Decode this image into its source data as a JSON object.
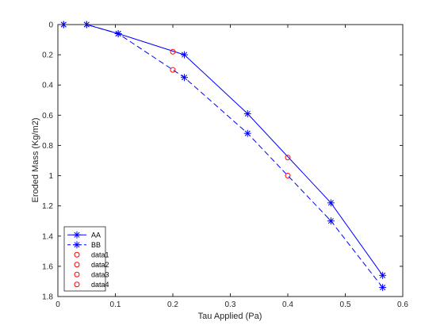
{
  "chart_data": {
    "type": "line",
    "title": "",
    "xlabel": "Tau Applied  (Pa)",
    "ylabel": "Eroded Mass  (Kg/m2)",
    "xlim": [
      0,
      0.6
    ],
    "ylim": [
      0,
      1.8
    ],
    "y_direction": "reversed",
    "xticks": [
      "0",
      "0.1",
      "0.2",
      "0.3",
      "0.4",
      "0.5",
      "0.6"
    ],
    "yticks": [
      "0",
      "0.2",
      "0.4",
      "0.6",
      "0.8",
      "1",
      "1.2",
      "1.4",
      "1.6",
      "1.8"
    ],
    "grid": false,
    "legend_position": "bottom-left",
    "series": [
      {
        "name": "AA",
        "line": "solid",
        "marker": "asterisk",
        "color": "#0000ff",
        "x": [
          0.01,
          0.05,
          0.105,
          0.22,
          0.33,
          0.475,
          0.565
        ],
        "y": [
          0,
          0,
          0.06,
          0.2,
          0.59,
          1.18,
          1.66
        ]
      },
      {
        "name": "BB",
        "line": "dashed",
        "marker": "asterisk",
        "color": "#0000ff",
        "x": [
          0.01,
          0.05,
          0.105,
          0.22,
          0.33,
          0.475,
          0.565
        ],
        "y": [
          0,
          0,
          0.06,
          0.35,
          0.72,
          1.3,
          1.74
        ]
      },
      {
        "name": "data1",
        "line": "none",
        "marker": "circle",
        "color": "#ff0000",
        "x": [
          0.2
        ],
        "y": [
          0.18
        ]
      },
      {
        "name": "data2",
        "line": "none",
        "marker": "circle",
        "color": "#ff0000",
        "x": [
          0.2
        ],
        "y": [
          0.3
        ]
      },
      {
        "name": "data3",
        "line": "none",
        "marker": "circle",
        "color": "#ff0000",
        "x": [
          0.4
        ],
        "y": [
          0.88
        ]
      },
      {
        "name": "data4",
        "line": "none",
        "marker": "circle",
        "color": "#ff0000",
        "x": [
          0.4
        ],
        "y": [
          1.0
        ]
      }
    ]
  }
}
